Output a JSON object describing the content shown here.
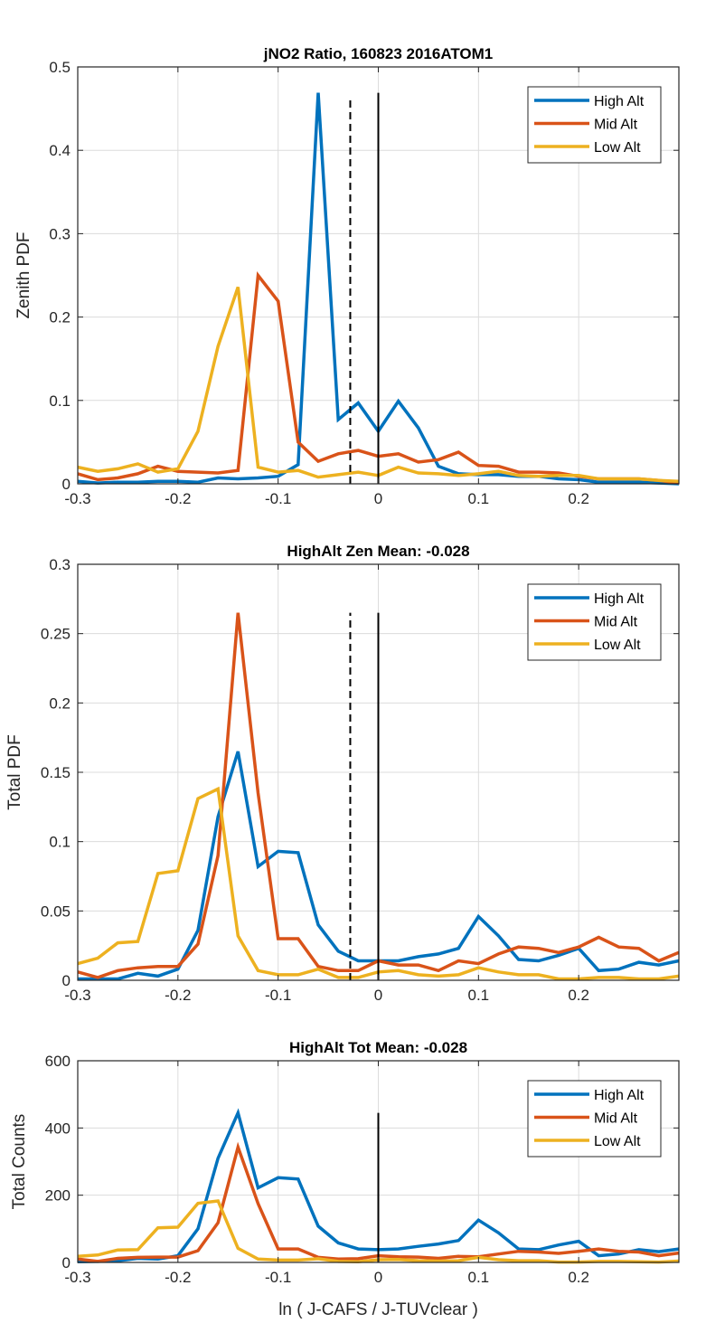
{
  "figure": {
    "xlabel": "ln ( J-CAFS / J-TUVclear )"
  },
  "colors": {
    "high_alt": "#0072BD",
    "mid_alt": "#D95319",
    "low_alt": "#EDB120",
    "grid": "#dcdcdc",
    "axis": "#262626"
  },
  "chart_data": [
    {
      "type": "line",
      "title": "jNO2 Ratio, 160823 2016ATOM1",
      "xlabel": "",
      "ylabel": "Zenith PDF",
      "xlim": [
        -0.3,
        0.3
      ],
      "ylim": [
        0,
        0.5
      ],
      "xticks": [
        -0.3,
        -0.2,
        -0.1,
        0,
        0.1,
        0.2
      ],
      "xtick_labels": [
        "-0.3",
        "-0.2",
        "-0.1",
        "0",
        "0.1",
        "0.2"
      ],
      "yticks": [
        0,
        0.1,
        0.2,
        0.3,
        0.4,
        0.5
      ],
      "ytick_labels": [
        "0",
        "0.1",
        "0.2",
        "0.3",
        "0.4",
        "0.5"
      ],
      "grid": true,
      "legend_position": "top-right",
      "vlines": [
        {
          "x": -0.028,
          "style": "dashed",
          "ymax": 0.46
        },
        {
          "x": 0,
          "style": "solid",
          "ymax": 0.469
        }
      ],
      "x": [
        -0.3,
        -0.28,
        -0.26,
        -0.24,
        -0.22,
        -0.2,
        -0.18,
        -0.16,
        -0.14,
        -0.12,
        -0.1,
        -0.08,
        -0.06,
        -0.04,
        -0.02,
        0,
        0.02,
        0.04,
        0.06,
        0.08,
        0.1,
        0.12,
        0.14,
        0.16,
        0.18,
        0.2,
        0.22,
        0.24,
        0.26,
        0.28,
        0.3
      ],
      "series": [
        {
          "name": "High Alt",
          "color_key": "high_alt",
          "values": [
            0.003,
            0.001,
            0.002,
            0.002,
            0.003,
            0.003,
            0.002,
            0.007,
            0.006,
            0.007,
            0.009,
            0.023,
            0.469,
            0.077,
            0.097,
            0.063,
            0.099,
            0.067,
            0.021,
            0.012,
            0.011,
            0.011,
            0.009,
            0.009,
            0.006,
            0.005,
            0.002,
            0.002,
            0.002,
            0.001,
            0.0
          ]
        },
        {
          "name": "Mid Alt",
          "color_key": "mid_alt",
          "values": [
            0.012,
            0.005,
            0.007,
            0.012,
            0.021,
            0.015,
            0.014,
            0.013,
            0.016,
            0.25,
            0.219,
            0.05,
            0.027,
            0.036,
            0.04,
            0.033,
            0.036,
            0.026,
            0.029,
            0.038,
            0.022,
            0.021,
            0.014,
            0.014,
            0.013,
            0.009,
            0.006,
            0.006,
            0.006,
            0.004,
            0.001
          ]
        },
        {
          "name": "Low Alt",
          "color_key": "low_alt",
          "values": [
            0.02,
            0.015,
            0.018,
            0.024,
            0.014,
            0.018,
            0.063,
            0.165,
            0.236,
            0.02,
            0.014,
            0.016,
            0.008,
            0.011,
            0.014,
            0.01,
            0.02,
            0.013,
            0.012,
            0.01,
            0.012,
            0.015,
            0.01,
            0.009,
            0.01,
            0.01,
            0.006,
            0.006,
            0.006,
            0.004,
            0.003
          ]
        }
      ]
    },
    {
      "type": "line",
      "title": "HighAlt Zen Mean: -0.028",
      "xlabel": "",
      "ylabel": "Total PDF",
      "xlim": [
        -0.3,
        0.3
      ],
      "ylim": [
        0,
        0.3
      ],
      "xticks": [
        -0.3,
        -0.2,
        -0.1,
        0,
        0.1,
        0.2
      ],
      "xtick_labels": [
        "-0.3",
        "-0.2",
        "-0.1",
        "0",
        "0.1",
        "0.2"
      ],
      "yticks": [
        0,
        0.05,
        0.1,
        0.15,
        0.2,
        0.25,
        0.3
      ],
      "ytick_labels": [
        "0",
        "0.05",
        "0.1",
        "0.15",
        "0.2",
        "0.25",
        "0.3"
      ],
      "grid": true,
      "legend_position": "top-right",
      "vlines": [
        {
          "x": -0.028,
          "style": "dashed",
          "ymax": 0.265
        },
        {
          "x": 0,
          "style": "solid",
          "ymax": 0.265
        }
      ],
      "x": [
        -0.3,
        -0.28,
        -0.26,
        -0.24,
        -0.22,
        -0.2,
        -0.18,
        -0.16,
        -0.14,
        -0.12,
        -0.1,
        -0.08,
        -0.06,
        -0.04,
        -0.02,
        0,
        0.02,
        0.04,
        0.06,
        0.08,
        0.1,
        0.12,
        0.14,
        0.16,
        0.18,
        0.2,
        0.22,
        0.24,
        0.26,
        0.28,
        0.3
      ],
      "series": [
        {
          "name": "High Alt",
          "color_key": "high_alt",
          "values": [
            0.001,
            0.001,
            0.001,
            0.005,
            0.003,
            0.008,
            0.036,
            0.118,
            0.165,
            0.082,
            0.093,
            0.092,
            0.04,
            0.021,
            0.014,
            0.014,
            0.014,
            0.017,
            0.019,
            0.023,
            0.046,
            0.032,
            0.015,
            0.014,
            0.018,
            0.023,
            0.007,
            0.008,
            0.013,
            0.011,
            0.014
          ]
        },
        {
          "name": "Mid Alt",
          "color_key": "mid_alt",
          "values": [
            0.006,
            0.002,
            0.007,
            0.009,
            0.01,
            0.01,
            0.026,
            0.09,
            0.265,
            0.135,
            0.03,
            0.03,
            0.01,
            0.007,
            0.007,
            0.014,
            0.011,
            0.011,
            0.007,
            0.014,
            0.012,
            0.019,
            0.024,
            0.023,
            0.02,
            0.024,
            0.031,
            0.024,
            0.023,
            0.014,
            0.02
          ]
        },
        {
          "name": "Low Alt",
          "color_key": "low_alt",
          "values": [
            0.012,
            0.016,
            0.027,
            0.028,
            0.077,
            0.079,
            0.131,
            0.138,
            0.032,
            0.007,
            0.004,
            0.004,
            0.008,
            0.002,
            0.002,
            0.006,
            0.007,
            0.004,
            0.003,
            0.004,
            0.009,
            0.006,
            0.004,
            0.004,
            0.001,
            0.001,
            0.002,
            0.002,
            0.001,
            0.001,
            0.003
          ]
        }
      ]
    },
    {
      "type": "line",
      "title": "HighAlt Tot Mean: -0.028",
      "xlabel": "ln ( J-CAFS / J-TUVclear )",
      "ylabel": "Total Counts",
      "xlim": [
        -0.3,
        0.3
      ],
      "ylim": [
        0,
        600
      ],
      "xticks": [
        -0.3,
        -0.2,
        -0.1,
        0,
        0.1,
        0.2
      ],
      "xtick_labels": [
        "-0.3",
        "-0.2",
        "-0.1",
        "0",
        "0.1",
        "0.2"
      ],
      "yticks": [
        0,
        200,
        400,
        600
      ],
      "ytick_labels": [
        "0",
        "200",
        "400",
        "600"
      ],
      "grid": true,
      "legend_position": "top-right",
      "vlines": [
        {
          "x": 0,
          "style": "solid",
          "ymax": 445
        }
      ],
      "x": [
        -0.3,
        -0.28,
        -0.26,
        -0.24,
        -0.22,
        -0.2,
        -0.18,
        -0.16,
        -0.14,
        -0.12,
        -0.1,
        -0.08,
        -0.06,
        -0.04,
        -0.02,
        0,
        0.02,
        0.04,
        0.06,
        0.08,
        0.1,
        0.12,
        0.14,
        0.16,
        0.18,
        0.2,
        0.22,
        0.24,
        0.26,
        0.28,
        0.3
      ],
      "series": [
        {
          "name": "High Alt",
          "color_key": "high_alt",
          "values": [
            2,
            3,
            5,
            12,
            10,
            20,
            100,
            310,
            445,
            222,
            252,
            248,
            108,
            58,
            40,
            38,
            40,
            48,
            55,
            65,
            126,
            88,
            40,
            38,
            52,
            63,
            20,
            25,
            38,
            32,
            40
          ]
        },
        {
          "name": "Mid Alt",
          "color_key": "mid_alt",
          "values": [
            10,
            3,
            12,
            15,
            16,
            16,
            35,
            118,
            343,
            175,
            40,
            40,
            15,
            10,
            11,
            20,
            17,
            16,
            12,
            18,
            17,
            25,
            33,
            31,
            27,
            33,
            40,
            33,
            31,
            20,
            28
          ]
        },
        {
          "name": "Low Alt",
          "color_key": "low_alt",
          "values": [
            18,
            22,
            37,
            38,
            103,
            105,
            176,
            183,
            42,
            10,
            7,
            7,
            11,
            3,
            2,
            8,
            9,
            5,
            4,
            5,
            15,
            8,
            5,
            5,
            1,
            1,
            3,
            3,
            2,
            1,
            4
          ]
        }
      ]
    }
  ]
}
